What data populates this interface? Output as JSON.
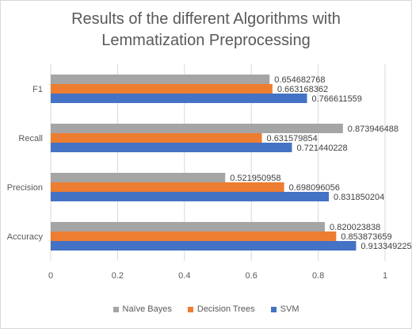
{
  "chart_data": {
    "type": "bar",
    "orientation": "horizontal",
    "title": "Results of the different  Algorithms with\nLemmatization Preprocessing",
    "categories": [
      "F1",
      "Recall",
      "Precision",
      "Accuracy"
    ],
    "series": [
      {
        "name": "Naïve Bayes",
        "color": "#a5a5a5",
        "values": [
          0.654682768,
          0.873946488,
          0.521950958,
          0.820023838
        ],
        "labels": [
          "0.654682768",
          "0.873946488",
          "0.521950958",
          "0.820023838"
        ]
      },
      {
        "name": "Decision Trees",
        "color": "#ed7d31",
        "values": [
          0.663168362,
          0.631579854,
          0.698096056,
          0.853873659
        ],
        "labels": [
          "0.663168362",
          "0.631579854",
          "0.698096056",
          "0.853873659"
        ]
      },
      {
        "name": "SVM",
        "color": "#4472c4",
        "values": [
          0.766611559,
          0.721440228,
          0.831850204,
          0.913349225
        ],
        "labels": [
          "0.766611559",
          "0.721440228",
          "0.831850204",
          "0.913349225"
        ]
      }
    ],
    "xlim": [
      0,
      1
    ],
    "xticks": [
      "0",
      "0.2",
      "0.4",
      "0.6",
      "0.8",
      "1"
    ],
    "xlabel": "",
    "ylabel": "",
    "grid": true,
    "legend_position": "bottom"
  }
}
